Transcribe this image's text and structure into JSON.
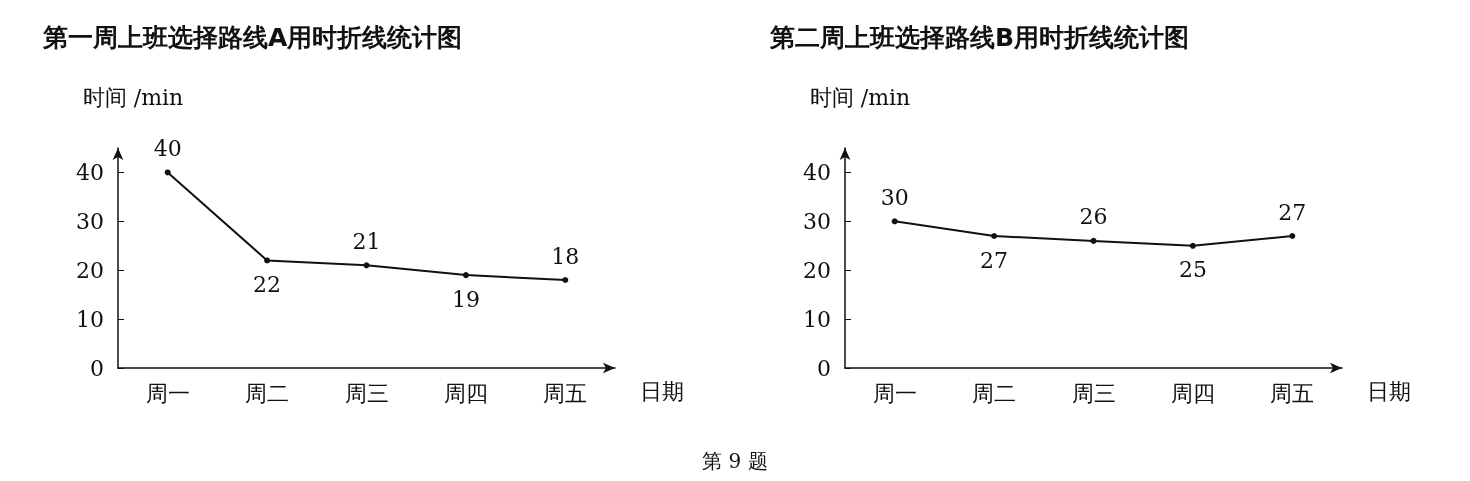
{
  "chart_data": [
    {
      "type": "line",
      "title": "第一周上班选择路线A用时折线统计图",
      "ylabel": "时间 /min",
      "xlabel": "日期",
      "categories": [
        "周一",
        "周二",
        "周三",
        "周四",
        "周五"
      ],
      "series": [
        {
          "color": "#111111",
          "values": [
            40,
            22,
            21,
            19,
            18
          ]
        }
      ],
      "ylim": [
        0,
        45
      ],
      "yticks": [
        0,
        10,
        20,
        30,
        40
      ],
      "grid": false,
      "marker": "circle",
      "line_style": "solid",
      "data_labels": true
    },
    {
      "type": "line",
      "title": "第二周上班选择路线B用时折线统计图",
      "ylabel": "时间 /min",
      "xlabel": "日期",
      "categories": [
        "周一",
        "周二",
        "周三",
        "周四",
        "周五"
      ],
      "series": [
        {
          "color": "#111111",
          "values": [
            30,
            27,
            26,
            25,
            27
          ]
        }
      ],
      "ylim": [
        0,
        45
      ],
      "yticks": [
        0,
        10,
        20,
        30,
        40
      ],
      "grid": false,
      "marker": "circle",
      "line_style": "solid",
      "data_labels": true,
      "annotations": [
        "第 9 题"
      ]
    }
  ]
}
